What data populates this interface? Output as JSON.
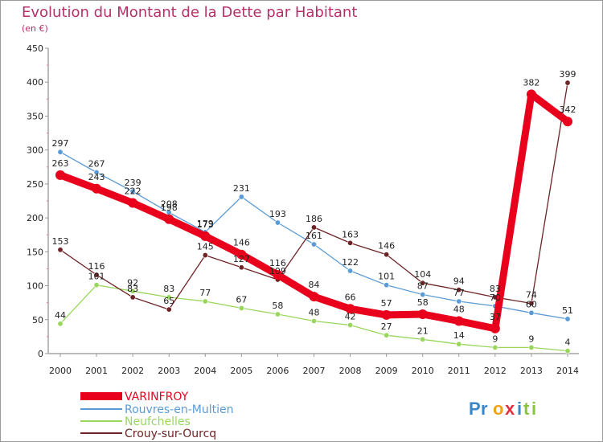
{
  "header": {
    "title": "Evolution du Montant de la Dette par Habitant",
    "unit": "(en €)"
  },
  "logo": "Proxiti",
  "chart_data": {
    "type": "line",
    "title": "Evolution du Montant de la Dette par Habitant",
    "subtitle": "(en €)",
    "x": [
      "2000",
      "2001",
      "2002",
      "2003",
      "2004",
      "2005",
      "2006",
      "2007",
      "2008",
      "2009",
      "2010",
      "2011",
      "2012",
      "2013",
      "2014"
    ],
    "ylim": [
      0,
      450
    ],
    "yticks": [
      0,
      50,
      100,
      150,
      200,
      250,
      300,
      350,
      400,
      450
    ],
    "grid": false,
    "legend": "bottom-left",
    "series": [
      {
        "name": "VARINFROY",
        "color": "#e8001c",
        "width": 9,
        "dot": 6,
        "values": [
          263,
          243,
          222,
          198,
          173,
          146,
          116,
          84,
          66,
          57,
          58,
          48,
          37,
          382,
          342
        ]
      },
      {
        "name": "Rouvres-en-Multien",
        "color": "#5b9bd5",
        "width": 1.3,
        "dot": 3.2,
        "values": [
          297,
          267,
          239,
          208,
          179,
          231,
          193,
          161,
          122,
          101,
          87,
          77,
          70,
          60,
          51
        ]
      },
      {
        "name": "Neufchelles",
        "color": "#99d65c",
        "width": 1.3,
        "dot": 3.2,
        "values": [
          44,
          101,
          92,
          83,
          77,
          67,
          58,
          48,
          42,
          27,
          21,
          14,
          9,
          9,
          4
        ]
      },
      {
        "name": "Crouy-sur-Ourcq",
        "color": "#6e2326",
        "width": 1.3,
        "dot": 3.2,
        "values": [
          153,
          116,
          83,
          65,
          145,
          127,
          109,
          186,
          163,
          146,
          104,
          94,
          83,
          74,
          399
        ]
      }
    ]
  }
}
